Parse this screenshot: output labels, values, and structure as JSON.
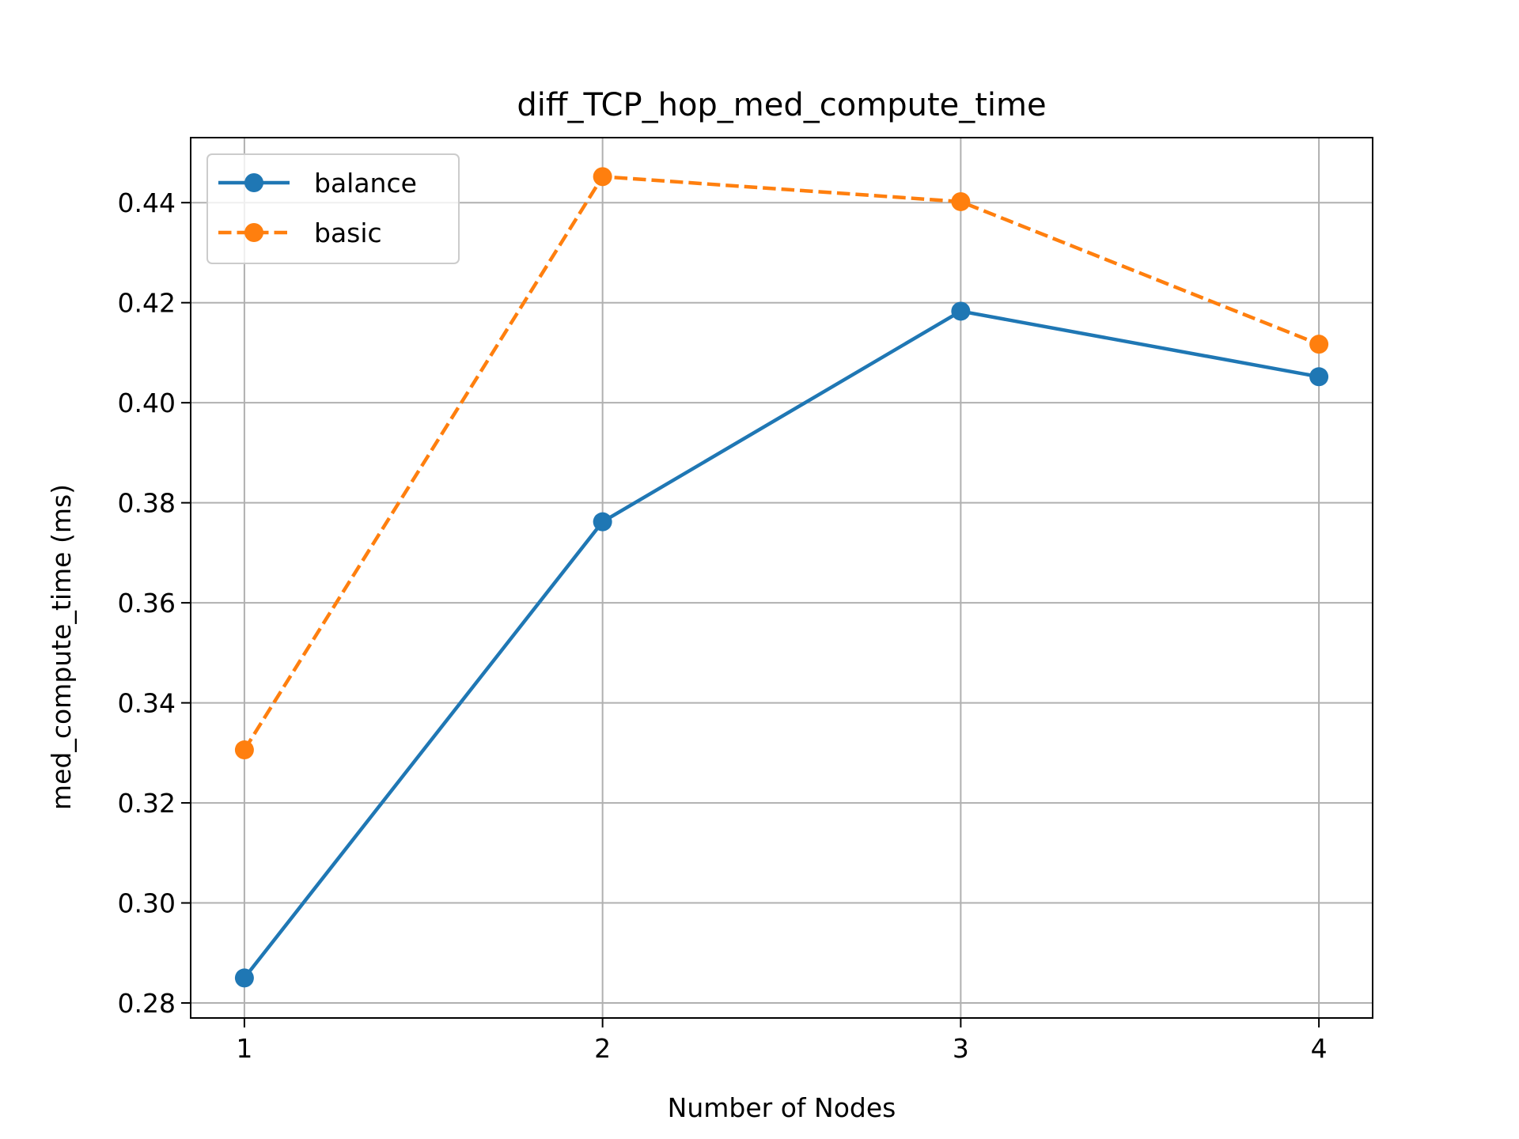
{
  "chart_data": {
    "type": "line",
    "title": "diff_TCP_hop_med_compute_time",
    "xlabel": "Number of Nodes",
    "ylabel": "med_compute_time (ms)",
    "x": [
      1,
      2,
      3,
      4
    ],
    "xlim": [
      0.85,
      4.15
    ],
    "ylim": [
      0.277,
      0.453
    ],
    "xticks": [
      1,
      2,
      3,
      4
    ],
    "xtick_labels": [
      "1",
      "2",
      "3",
      "4"
    ],
    "yticks": [
      0.28,
      0.3,
      0.32,
      0.34,
      0.36,
      0.38,
      0.4,
      0.42,
      0.44
    ],
    "ytick_labels": [
      "0.28",
      "0.30",
      "0.32",
      "0.34",
      "0.36",
      "0.38",
      "0.40",
      "0.42",
      "0.44"
    ],
    "grid": true,
    "legend": "top-left",
    "series": [
      {
        "name": "balance",
        "values": [
          0.285,
          0.3762,
          0.4183,
          0.4052
        ],
        "color": "#1f77b4",
        "linestyle": "solid",
        "marker": "circle"
      },
      {
        "name": "basic",
        "values": [
          0.3306,
          0.4452,
          0.4402,
          0.4117
        ],
        "color": "#ff7f0e",
        "linestyle": "dashed",
        "marker": "circle"
      }
    ]
  }
}
